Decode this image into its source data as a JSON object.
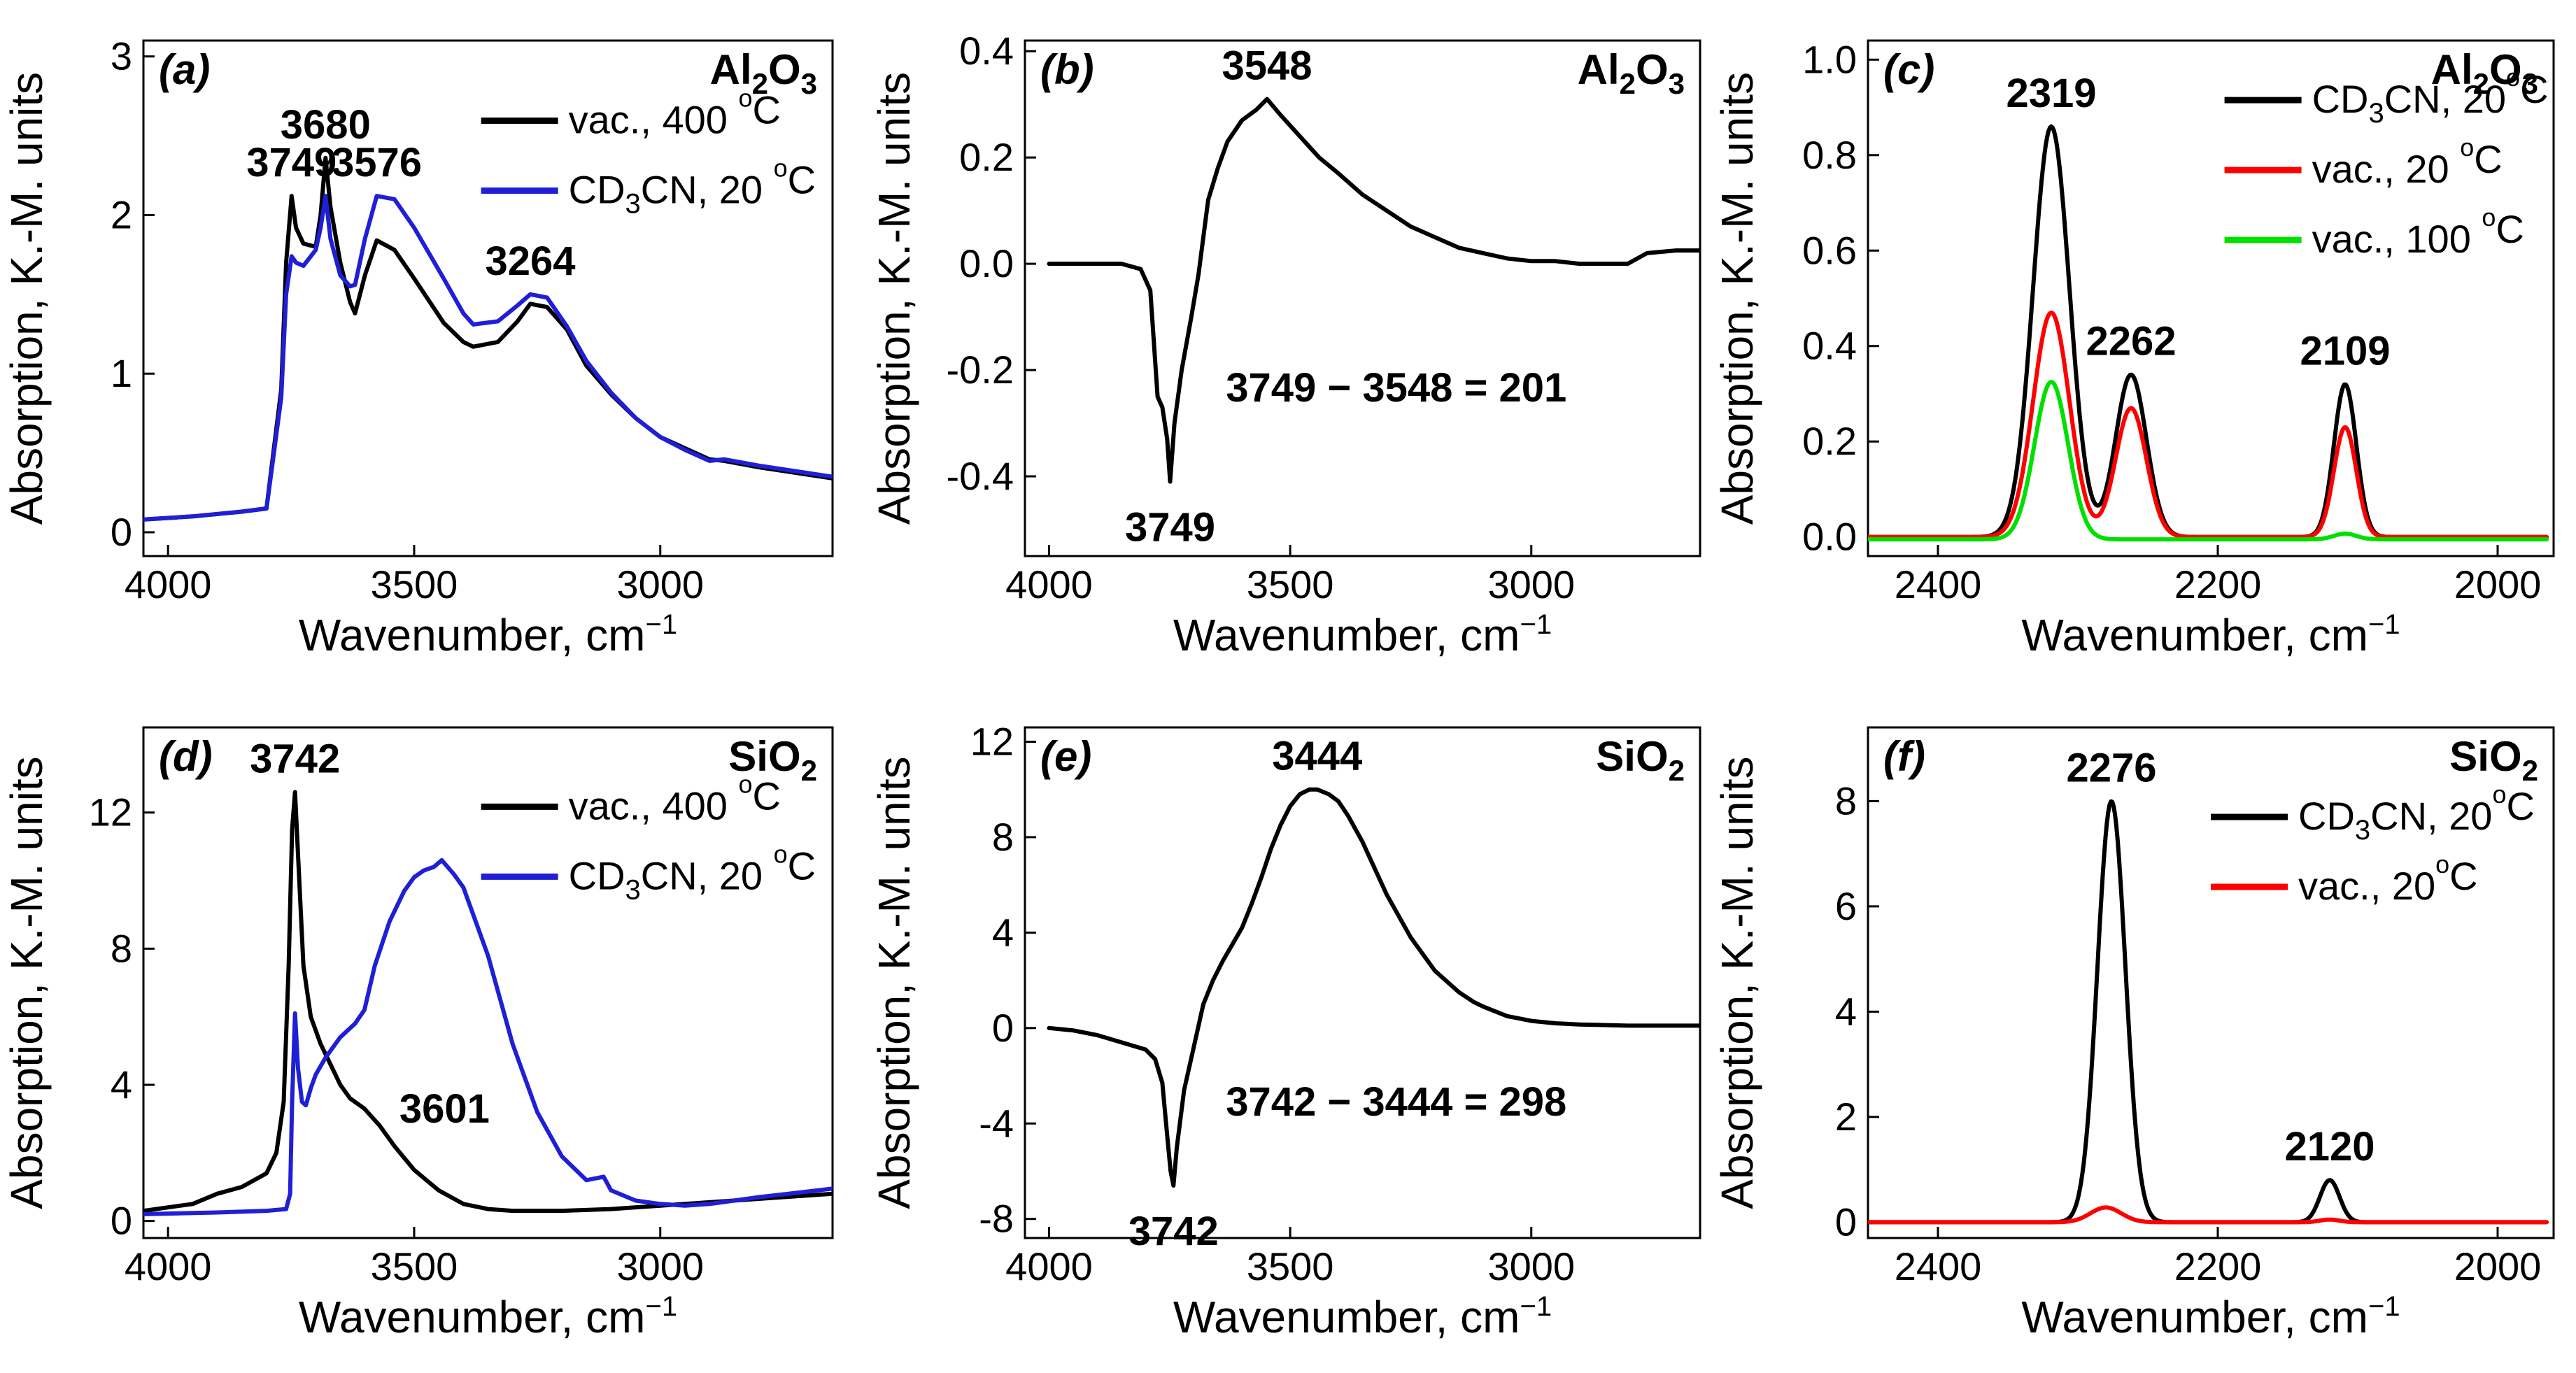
{
  "chart_data": [
    {
      "type": "line",
      "id": "a",
      "panel_label": "(a)",
      "material": {
        "base": "Al",
        "sub1": "2",
        "mid": "O",
        "sub2": "3"
      },
      "xlabel": "Wavenumber, cm",
      "xlabel_sup": "−1",
      "ylabel": "Absorption, K.-M. units",
      "xlim": [
        4050,
        2650
      ],
      "ylim": [
        -0.15,
        3.1
      ],
      "xticks": [
        4000,
        3500,
        3000
      ],
      "yticks": [
        0,
        1,
        2,
        3
      ],
      "legend": [
        {
          "name": "vac., 400 °C",
          "parts": [
            "vac., 400 ",
            "o",
            "C"
          ],
          "color": "#000000"
        },
        {
          "name": "CD3CN, 20 °C",
          "parts": [
            "CD",
            "3",
            "CN, 20 ",
            "o",
            "C"
          ],
          "color": "#1f1fd6"
        }
      ],
      "series": [
        {
          "name": "vac., 400 °C",
          "color": "#000000",
          "x": [
            4050,
            3950,
            3850,
            3800,
            3790,
            3770,
            3760,
            3749,
            3740,
            3725,
            3700,
            3690,
            3680,
            3670,
            3650,
            3630,
            3620,
            3600,
            3576,
            3540,
            3500,
            3440,
            3400,
            3380,
            3330,
            3290,
            3264,
            3230,
            3190,
            3150,
            3100,
            3050,
            3000,
            2950,
            2900,
            2870,
            2800,
            2650
          ],
          "y": [
            0.08,
            0.1,
            0.13,
            0.15,
            0.4,
            0.9,
            1.7,
            2.12,
            1.92,
            1.82,
            1.8,
            2.0,
            2.36,
            2.05,
            1.7,
            1.45,
            1.38,
            1.62,
            1.84,
            1.78,
            1.6,
            1.32,
            1.2,
            1.17,
            1.2,
            1.33,
            1.44,
            1.42,
            1.28,
            1.05,
            0.87,
            0.72,
            0.6,
            0.53,
            0.46,
            0.45,
            0.41,
            0.34
          ]
        },
        {
          "name": "CD3CN, 20 °C",
          "color": "#1f1fd6",
          "x": [
            4050,
            3950,
            3850,
            3800,
            3790,
            3770,
            3760,
            3749,
            3740,
            3725,
            3700,
            3690,
            3680,
            3670,
            3650,
            3630,
            3620,
            3600,
            3576,
            3540,
            3500,
            3440,
            3400,
            3380,
            3330,
            3290,
            3264,
            3230,
            3190,
            3150,
            3100,
            3050,
            3000,
            2950,
            2900,
            2870,
            2800,
            2650
          ],
          "y": [
            0.08,
            0.1,
            0.13,
            0.15,
            0.38,
            0.85,
            1.5,
            1.74,
            1.7,
            1.68,
            1.78,
            1.92,
            2.12,
            1.85,
            1.62,
            1.55,
            1.56,
            1.85,
            2.12,
            2.1,
            1.92,
            1.6,
            1.38,
            1.31,
            1.33,
            1.43,
            1.5,
            1.48,
            1.3,
            1.08,
            0.88,
            0.72,
            0.6,
            0.52,
            0.45,
            0.46,
            0.42,
            0.35
          ]
        }
      ],
      "annotations": [
        {
          "text": "3749",
          "x": 3749,
          "y": 2.12
        },
        {
          "text": "3680",
          "x": 3680,
          "y": 2.36
        },
        {
          "text": "3576",
          "x": 3576,
          "y": 2.12
        },
        {
          "text": "3264",
          "x": 3264,
          "y": 1.5
        }
      ]
    },
    {
      "type": "line",
      "id": "b",
      "panel_label": "(b)",
      "material": {
        "base": "Al",
        "sub1": "2",
        "mid": "O",
        "sub2": "3"
      },
      "xlabel": "Wavenumber, cm",
      "xlabel_sup": "−1",
      "ylabel": "Absorption, K.-M. units",
      "xlim": [
        4050,
        2650
      ],
      "ylim": [
        -0.55,
        0.42
      ],
      "xticks": [
        4000,
        3500,
        3000
      ],
      "yticks": [
        -0.4,
        -0.2,
        0.0,
        0.2,
        0.4
      ],
      "ytick_labels": [
        "-0.4",
        "-0.2",
        "0.0",
        "0.2",
        "0.4"
      ],
      "equation": "3749 − 3548 = 201",
      "series": [
        {
          "name": "difference",
          "color": "#000000",
          "x": [
            4000,
            3900,
            3850,
            3810,
            3790,
            3775,
            3765,
            3755,
            3749,
            3740,
            3725,
            3715,
            3705,
            3690,
            3670,
            3650,
            3630,
            3600,
            3570,
            3548,
            3520,
            3480,
            3440,
            3400,
            3350,
            3300,
            3250,
            3200,
            3150,
            3100,
            3050,
            3000,
            2950,
            2900,
            2850,
            2800,
            2760,
            2700,
            2650
          ],
          "y": [
            0.0,
            0.0,
            0.0,
            -0.01,
            -0.05,
            -0.25,
            -0.27,
            -0.33,
            -0.41,
            -0.3,
            -0.2,
            -0.15,
            -0.1,
            -0.02,
            0.12,
            0.18,
            0.23,
            0.27,
            0.29,
            0.31,
            0.28,
            0.24,
            0.2,
            0.17,
            0.13,
            0.1,
            0.07,
            0.05,
            0.03,
            0.02,
            0.01,
            0.005,
            0.005,
            0.0,
            0.0,
            0.0,
            0.02,
            0.025,
            0.025
          ]
        }
      ],
      "annotations": [
        {
          "text": "3548",
          "x": 3548,
          "y": 0.31,
          "pos": "above"
        },
        {
          "text": "3749",
          "x": 3749,
          "y": -0.41,
          "pos": "below"
        }
      ]
    },
    {
      "type": "line",
      "id": "c",
      "panel_label": "(c)",
      "material": {
        "base": "Al",
        "sub1": "2",
        "mid": "O",
        "sub2": "3"
      },
      "xlabel": "Wavenumber, cm",
      "xlabel_sup": "−1",
      "ylabel": "Absorption, K.-M. units",
      "xlim": [
        2450,
        1960
      ],
      "ylim": [
        -0.04,
        1.04
      ],
      "xticks": [
        2400,
        2200,
        2000
      ],
      "yticks": [
        0.0,
        0.2,
        0.4,
        0.6,
        0.8,
        1.0
      ],
      "ytick_labels": [
        "0.0",
        "0.2",
        "0.4",
        "0.6",
        "0.8",
        "1.0"
      ],
      "legend": [
        {
          "name": "CD3CN, 20°C",
          "parts": [
            "CD",
            "3",
            "CN, 20",
            "o",
            "C"
          ],
          "color": "#000000"
        },
        {
          "name": "vac., 20 °C",
          "parts": [
            "vac., 20 ",
            "o",
            "C"
          ],
          "color": "#ff0000"
        },
        {
          "name": "vac., 100 °C",
          "parts": [
            "vac., 100 ",
            "o",
            "C"
          ],
          "color": "#00e000"
        }
      ],
      "series": [
        {
          "name": "CD3CN, 20°C",
          "color": "#000000",
          "peaks": [
            {
              "c": 2319,
              "h": 0.86,
              "w": 13
            },
            {
              "c": 2262,
              "h": 0.34,
              "w": 11
            },
            {
              "c": 2109,
              "h": 0.32,
              "w": 8
            }
          ],
          "baseline": 0.0,
          "xrange": [
            2450,
            1965
          ]
        },
        {
          "name": "vac., 20 °C",
          "color": "#ff0000",
          "peaks": [
            {
              "c": 2319,
              "h": 0.47,
              "w": 13
            },
            {
              "c": 2262,
              "h": 0.27,
              "w": 11
            },
            {
              "c": 2109,
              "h": 0.23,
              "w": 8
            }
          ],
          "baseline": 0.0,
          "xrange": [
            2450,
            1965
          ]
        },
        {
          "name": "vac., 100 °C",
          "color": "#00e000",
          "peaks": [
            {
              "c": 2319,
              "h": 0.33,
              "w": 12
            },
            {
              "c": 2109,
              "h": 0.012,
              "w": 8
            }
          ],
          "baseline": -0.005,
          "xrange": [
            2450,
            1965
          ]
        }
      ],
      "annotations": [
        {
          "text": "2319",
          "x": 2319,
          "y": 0.86
        },
        {
          "text": "2262",
          "x": 2262,
          "y": 0.34
        },
        {
          "text": "2109",
          "x": 2109,
          "y": 0.32
        }
      ]
    },
    {
      "type": "line",
      "id": "d",
      "panel_label": "(d)",
      "material": {
        "base": "SiO",
        "sub1": "2",
        "mid": "",
        "sub2": ""
      },
      "xlabel": "Wavenumber, cm",
      "xlabel_sup": "−1",
      "ylabel": "Absorption, K.-M. units",
      "xlim": [
        4050,
        2650
      ],
      "ylim": [
        -0.5,
        14.5
      ],
      "xticks": [
        4000,
        3500,
        3000
      ],
      "yticks": [
        0,
        4,
        8,
        12
      ],
      "legend": [
        {
          "name": "vac., 400 °C",
          "parts": [
            "vac., 400 ",
            "o",
            "C"
          ],
          "color": "#000000"
        },
        {
          "name": "CD3CN, 20 °C",
          "parts": [
            "CD",
            "3",
            "CN, 20 ",
            "o",
            "C"
          ],
          "color": "#1f1fd6"
        }
      ],
      "series": [
        {
          "name": "vac., 400 °C",
          "color": "#000000",
          "x": [
            4050,
            3950,
            3900,
            3850,
            3800,
            3780,
            3765,
            3755,
            3748,
            3742,
            3735,
            3725,
            3710,
            3690,
            3670,
            3650,
            3630,
            3601,
            3570,
            3540,
            3500,
            3450,
            3400,
            3350,
            3300,
            3200,
            3100,
            3000,
            2900,
            2800,
            2650
          ],
          "y": [
            0.3,
            0.5,
            0.8,
            1.0,
            1.4,
            2.0,
            3.5,
            7.5,
            11.5,
            12.6,
            10.5,
            7.5,
            6.0,
            5.2,
            4.6,
            4.0,
            3.6,
            3.3,
            2.8,
            2.2,
            1.5,
            0.9,
            0.5,
            0.35,
            0.3,
            0.3,
            0.35,
            0.45,
            0.55,
            0.65,
            0.8
          ]
        },
        {
          "name": "CD3CN, 20 °C",
          "color": "#1f1fd6",
          "x": [
            4050,
            3900,
            3800,
            3760,
            3752,
            3748,
            3742,
            3736,
            3728,
            3720,
            3710,
            3700,
            3680,
            3650,
            3620,
            3601,
            3580,
            3550,
            3520,
            3500,
            3480,
            3460,
            3444,
            3420,
            3400,
            3380,
            3350,
            3300,
            3250,
            3200,
            3150,
            3115,
            3100,
            3050,
            3000,
            2950,
            2900,
            2850,
            2800,
            2650
          ],
          "y": [
            0.2,
            0.25,
            0.3,
            0.35,
            0.8,
            3.5,
            6.1,
            4.5,
            3.5,
            3.4,
            3.9,
            4.3,
            4.8,
            5.4,
            5.8,
            6.2,
            7.5,
            8.8,
            9.7,
            10.1,
            10.3,
            10.4,
            10.6,
            10.2,
            9.8,
            9.0,
            7.8,
            5.2,
            3.2,
            1.9,
            1.2,
            1.3,
            0.9,
            0.6,
            0.5,
            0.45,
            0.5,
            0.6,
            0.7,
            0.95
          ]
        }
      ],
      "annotations": [
        {
          "text": "3742",
          "x": 3742,
          "y": 12.6
        },
        {
          "text": "3601",
          "x": 3601,
          "y": 3.3,
          "pos": "right"
        }
      ]
    },
    {
      "type": "line",
      "id": "e",
      "panel_label": "(e)",
      "material": {
        "base": "SiO",
        "sub1": "2",
        "mid": "",
        "sub2": ""
      },
      "xlabel": "Wavenumber, cm",
      "xlabel_sup": "−1",
      "ylabel": "Absorption, K.-M. units",
      "xlim": [
        4050,
        2650
      ],
      "ylim": [
        -8.8,
        12.6
      ],
      "xticks": [
        4000,
        3500,
        3000
      ],
      "yticks": [
        -8,
        -4,
        0,
        4,
        8,
        12
      ],
      "equation": "3742 − 3444 = 298",
      "series": [
        {
          "name": "difference",
          "color": "#000000",
          "x": [
            4000,
            3950,
            3900,
            3850,
            3800,
            3780,
            3765,
            3755,
            3748,
            3742,
            3735,
            3720,
            3700,
            3680,
            3660,
            3640,
            3620,
            3600,
            3580,
            3560,
            3540,
            3520,
            3500,
            3480,
            3460,
            3444,
            3420,
            3400,
            3380,
            3350,
            3300,
            3250,
            3200,
            3150,
            3120,
            3100,
            3050,
            3000,
            2950,
            2900,
            2800,
            2650
          ],
          "y": [
            0.0,
            -0.1,
            -0.3,
            -0.6,
            -0.9,
            -1.3,
            -2.3,
            -4.5,
            -6.0,
            -6.6,
            -5.0,
            -2.6,
            -0.8,
            1.0,
            2.0,
            2.8,
            3.5,
            4.2,
            5.2,
            6.3,
            7.5,
            8.5,
            9.3,
            9.8,
            10.0,
            10.0,
            9.8,
            9.5,
            8.9,
            7.8,
            5.6,
            3.8,
            2.4,
            1.5,
            1.1,
            0.9,
            0.5,
            0.3,
            0.2,
            0.15,
            0.1,
            0.1
          ]
        }
      ],
      "annotations": [
        {
          "text": "3444",
          "x": 3444,
          "y": 10.0,
          "pos": "above"
        },
        {
          "text": "3742",
          "x": 3742,
          "y": -6.6,
          "pos": "below"
        }
      ]
    },
    {
      "type": "line",
      "id": "f",
      "panel_label": "(f)",
      "material": {
        "base": "SiO",
        "sub1": "2",
        "mid": "",
        "sub2": ""
      },
      "xlabel": "Wavenumber, cm",
      "xlabel_sup": "−1",
      "ylabel": "Absorption, K.-M. units",
      "xlim": [
        2450,
        1960
      ],
      "ylim": [
        -0.3,
        9.4
      ],
      "xticks": [
        2400,
        2200,
        2000
      ],
      "yticks": [
        0,
        2,
        4,
        6,
        8
      ],
      "legend": [
        {
          "name": "CD3CN, 20°C",
          "parts": [
            "CD",
            "3",
            "CN, 20",
            "o",
            "C"
          ],
          "color": "#000000"
        },
        {
          "name": "vac., 20°C",
          "parts": [
            "vac., 20",
            "o",
            "C"
          ],
          "color": "#ff0000"
        }
      ],
      "series": [
        {
          "name": "CD3CN, 20°C",
          "color": "#000000",
          "peaks": [
            {
              "c": 2276,
              "h": 8.0,
              "w": 10
            },
            {
              "c": 2120,
              "h": 0.8,
              "w": 7
            }
          ],
          "baseline": 0.0,
          "xrange": [
            2450,
            1965
          ]
        },
        {
          "name": "vac., 20°C",
          "color": "#ff0000",
          "peaks": [
            {
              "c": 2280,
              "h": 0.28,
              "w": 11
            },
            {
              "c": 2120,
              "h": 0.05,
              "w": 7
            }
          ],
          "baseline": 0.0,
          "xrange": [
            2450,
            1965
          ]
        }
      ],
      "annotations": [
        {
          "text": "2276",
          "x": 2276,
          "y": 8.0
        },
        {
          "text": "2120",
          "x": 2120,
          "y": 0.8
        }
      ]
    }
  ]
}
